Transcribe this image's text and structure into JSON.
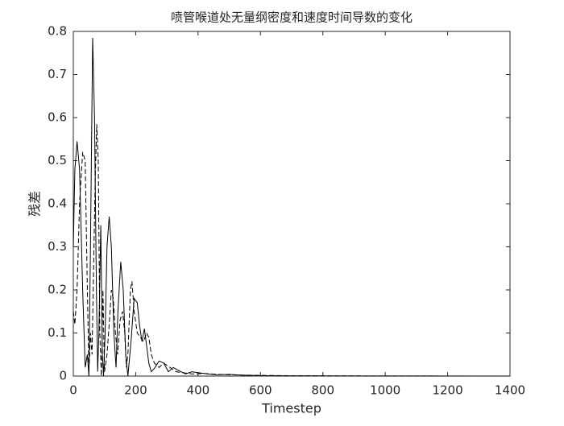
{
  "chart_data": {
    "type": "line",
    "title": "喷管喉道处无量纲密度和速度时间导数的变化",
    "xlabel": "Timestep",
    "ylabel": "残差",
    "xlim": [
      0,
      1400
    ],
    "xticks": [
      0,
      200,
      400,
      600,
      800,
      1000,
      1200,
      1400
    ],
    "ylim": [
      0,
      0.8
    ],
    "yticks": [
      0,
      0.1,
      0.2,
      0.3,
      0.4,
      0.5,
      0.6,
      0.7,
      0.8
    ],
    "series": [
      {
        "color": "#000000",
        "dash": "solid",
        "x": [
          0,
          5,
          12,
          20,
          30,
          38,
          45,
          50,
          55,
          62,
          68,
          74,
          78,
          82,
          88,
          93,
          97,
          102,
          108,
          115,
          122,
          130,
          137,
          143,
          152,
          160,
          168,
          175,
          185,
          195,
          205,
          212,
          220,
          228,
          235,
          242,
          250,
          262,
          275,
          290,
          305,
          320,
          340,
          360,
          380,
          400,
          430,
          460,
          500,
          540,
          600,
          700,
          900,
          1400
        ],
        "values": [
          0.3,
          0.48,
          0.545,
          0.48,
          0.2,
          0.02,
          0.05,
          0,
          0.3,
          0.785,
          0.6,
          0.2,
          0.01,
          0.1,
          0.35,
          0.05,
          0,
          0.1,
          0.3,
          0.37,
          0.3,
          0.1,
          0.02,
          0.15,
          0.265,
          0.2,
          0.05,
          0,
          0.08,
          0.18,
          0.17,
          0.12,
          0.08,
          0.11,
          0.07,
          0.03,
          0.01,
          0.02,
          0.035,
          0.03,
          0.01,
          0.02,
          0.012,
          0.005,
          0.01,
          0.008,
          0.005,
          0.003,
          0.004,
          0.002,
          0.001,
          0.0005,
          0.0002,
          0
        ]
      },
      {
        "color": "#000000",
        "dash": "dashed",
        "x": [
          0,
          5,
          12,
          20,
          30,
          38,
          45,
          50,
          55,
          60,
          65,
          70,
          75,
          80,
          85,
          90,
          95,
          100,
          108,
          115,
          122,
          128,
          135,
          142,
          150,
          158,
          165,
          170,
          175,
          183,
          188,
          195,
          205,
          215,
          225,
          235,
          242,
          250,
          260,
          275,
          290,
          310,
          330,
          350,
          380,
          420,
          460,
          500,
          560,
          700,
          1000,
          1400
        ],
        "values": [
          0.15,
          0.12,
          0.2,
          0.4,
          0.52,
          0.5,
          0.2,
          0.01,
          0.1,
          0.05,
          0.25,
          0.45,
          0.585,
          0.5,
          0.1,
          0,
          0.2,
          0.01,
          0.05,
          0.12,
          0.2,
          0.18,
          0.1,
          0.05,
          0.13,
          0.15,
          0.1,
          0.02,
          0.05,
          0.2,
          0.22,
          0.15,
          0.1,
          0.09,
          0.08,
          0.1,
          0.09,
          0.05,
          0.03,
          0.02,
          0.03,
          0.02,
          0.01,
          0.008,
          0.005,
          0.006,
          0.004,
          0.003,
          0.002,
          0.0008,
          0.0002,
          0
        ]
      }
    ]
  }
}
